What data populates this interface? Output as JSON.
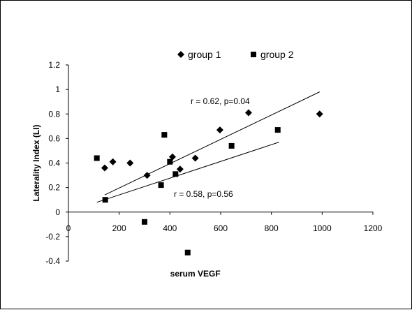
{
  "chart_data": {
    "type": "scatter",
    "xlabel": "serum VEGF",
    "ylabel": "Laterality  Index (LI)",
    "xlim": [
      0,
      1200
    ],
    "ylim": [
      -0.4,
      1.2
    ],
    "x_ticks": [
      "0",
      "200",
      "400",
      "600",
      "800",
      "1000",
      "1200"
    ],
    "y_ticks": [
      "-0.4",
      "-0.2",
      "0",
      "0.2",
      "0.4",
      "0.6",
      "0.8",
      "1",
      "1.2"
    ],
    "grid": false,
    "legend_position": "top",
    "series": [
      {
        "name": "group 1",
        "marker": "diamond",
        "color": "#000000",
        "points": [
          [
            143,
            0.36
          ],
          [
            175,
            0.41
          ],
          [
            243,
            0.4
          ],
          [
            310,
            0.3
          ],
          [
            410,
            0.45
          ],
          [
            440,
            0.35
          ],
          [
            500,
            0.44
          ],
          [
            597,
            0.67
          ],
          [
            710,
            0.81
          ],
          [
            990,
            0.8
          ]
        ],
        "trendline": {
          "from": [
            143,
            0.14
          ],
          "to": [
            990,
            0.98
          ]
        },
        "annotation": "r = 0.62, p=0.04"
      },
      {
        "name": "group 2",
        "marker": "square",
        "color": "#000000",
        "points": [
          [
            112,
            0.44
          ],
          [
            145,
            0.1
          ],
          [
            300,
            -0.08
          ],
          [
            365,
            0.22
          ],
          [
            378,
            0.63
          ],
          [
            400,
            0.41
          ],
          [
            422,
            0.31
          ],
          [
            470,
            -0.33
          ],
          [
            643,
            0.54
          ],
          [
            825,
            0.67
          ]
        ],
        "trendline": {
          "from": [
            112,
            0.08
          ],
          "to": [
            830,
            0.57
          ]
        },
        "annotation": "r = 0.58, p=0.56"
      }
    ]
  }
}
